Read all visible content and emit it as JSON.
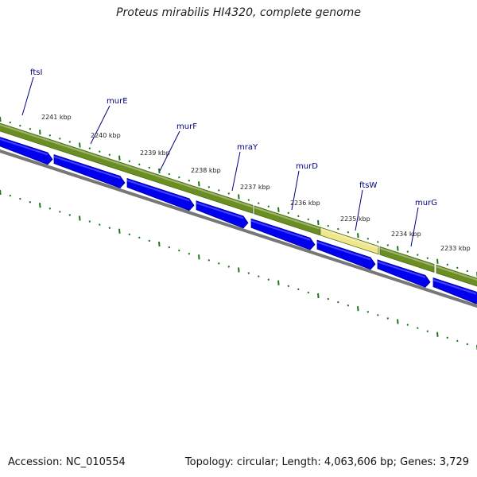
{
  "title": "Proteus mirabilis HI4320, complete genome",
  "footer": {
    "accession": "Accession: NC_010554",
    "summary": "Topology: circular; Length: 4,063,606 bp; Genes: 3,729"
  },
  "genes": [
    {
      "label": "ftsI"
    },
    {
      "label": "murE"
    },
    {
      "label": "murF"
    },
    {
      "label": "mraY"
    },
    {
      "label": "murD"
    },
    {
      "label": "ftsW"
    },
    {
      "label": "murG"
    }
  ],
  "kbp_ticks": [
    "2241 kbp",
    "2240 kbp",
    "2239 kbp",
    "2238 kbp",
    "2237 kbp",
    "2236 kbp",
    "2235 kbp",
    "2234 kbp",
    "2233 kbp"
  ],
  "colors": {
    "cds_blue": "#0000ee",
    "cds_blue_light": "#4040ff",
    "gene_green": "#6b8e23",
    "gene_green_light": "#9ab653",
    "highlight_yellow": "#f0e68c",
    "tick_green": "#1a7a1a",
    "backbone_gray": "#777777",
    "label_navy": "#000080"
  }
}
